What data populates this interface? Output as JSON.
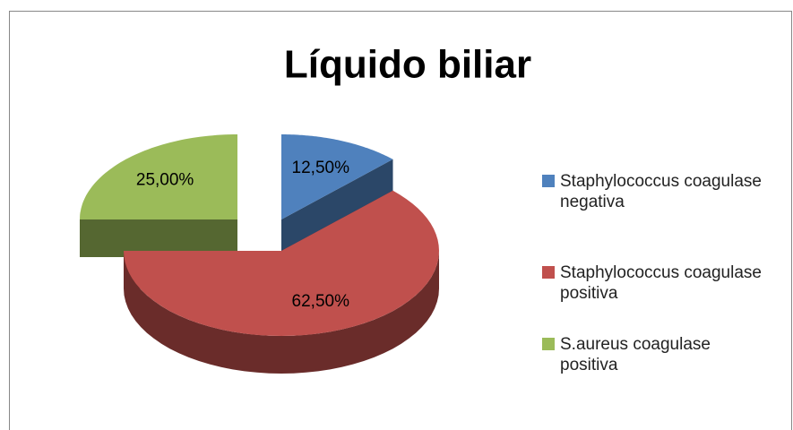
{
  "chart_data": {
    "type": "pie3d",
    "title": "Líquido biliar",
    "categories": [
      "Staphylococcus coagulase negativa",
      "Staphylococcus coagulase positiva",
      "S.aureus coagulase positiva"
    ],
    "values": [
      12.5,
      62.5,
      25
    ],
    "value_labels": [
      "12,50%",
      "62,50%",
      "25,00%"
    ],
    "colors": [
      "#4f81bd",
      "#c0504d",
      "#9bbb59"
    ],
    "legend": "right"
  }
}
